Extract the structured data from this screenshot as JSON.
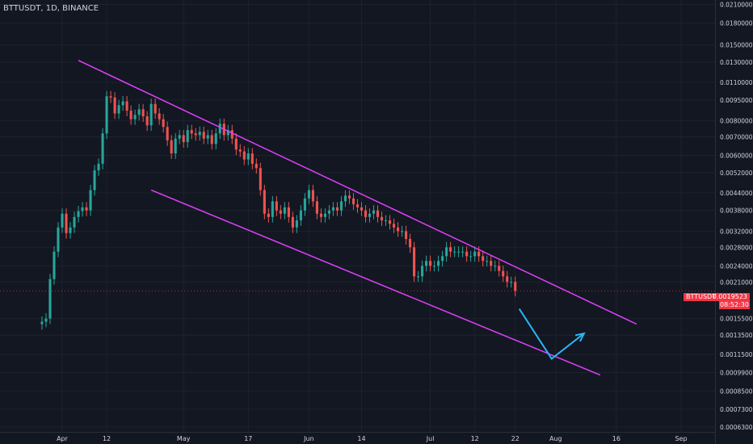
{
  "symbol_title": "BTTUSDT, 1D, BINANCE",
  "price_tag": {
    "symbol": "BTTUSDT",
    "price": "0.0019523",
    "countdown": "08:52:30"
  },
  "colors": {
    "background": "#131722",
    "up_candle": "#26a69a",
    "down_candle": "#ef5350",
    "trendline": "#e040fb",
    "projection_arrow": "#29b6f6",
    "axis_text": "#d1d4dc",
    "price_tag_bg": "#f23645"
  },
  "chart_data": {
    "type": "candlestick",
    "title": "BTTUSDT, 1D, BINANCE",
    "y_scale": "log",
    "ylim": [
      0.00063,
      0.0215
    ],
    "y_ticks": [
      "0.0210000",
      "0.0180000",
      "0.0150000",
      "0.0130000",
      "0.0110000",
      "0.0095000",
      "0.0080000",
      "0.0070000",
      "0.0060000",
      "0.0052000",
      "0.0044000",
      "0.0038000",
      "0.0032000",
      "0.0028000",
      "0.0024000",
      "0.0021000",
      "0.0015500",
      "0.0013500",
      "0.0011500",
      "0.0009900",
      "0.0008500",
      "0.0007300",
      "0.0006300"
    ],
    "x_ticks": [
      "Apr",
      "12",
      "May",
      "17",
      "Jun",
      "14",
      "Jul",
      "12",
      "22",
      "Aug",
      "16",
      "Sep"
    ],
    "close_series": [
      [
        "2021-03-27",
        0.00151
      ],
      [
        "2021-03-28",
        0.00155
      ],
      [
        "2021-03-29",
        0.00215
      ],
      [
        "2021-03-30",
        0.0027
      ],
      [
        "2021-03-31",
        0.0033
      ],
      [
        "2021-04-01",
        0.0037
      ],
      [
        "2021-04-02",
        0.00315
      ],
      [
        "2021-04-03",
        0.0033
      ],
      [
        "2021-04-04",
        0.0036
      ],
      [
        "2021-04-05",
        0.00378
      ],
      [
        "2021-04-06",
        0.0039
      ],
      [
        "2021-04-07",
        0.0038
      ],
      [
        "2021-04-08",
        0.0045
      ],
      [
        "2021-04-09",
        0.0053
      ],
      [
        "2021-04-10",
        0.0056
      ],
      [
        "2021-04-11",
        0.0072
      ],
      [
        "2021-04-12",
        0.0098
      ],
      [
        "2021-04-13",
        0.0097
      ],
      [
        "2021-04-14",
        0.0085
      ],
      [
        "2021-04-15",
        0.0091
      ],
      [
        "2021-04-16",
        0.0094
      ],
      [
        "2021-04-17",
        0.0087
      ],
      [
        "2021-04-18",
        0.0081
      ],
      [
        "2021-04-19",
        0.0084
      ],
      [
        "2021-04-20",
        0.0088
      ],
      [
        "2021-04-21",
        0.0083
      ],
      [
        "2021-04-22",
        0.0077
      ],
      [
        "2021-04-23",
        0.0092
      ],
      [
        "2021-04-24",
        0.0085
      ],
      [
        "2021-04-25",
        0.0081
      ],
      [
        "2021-04-26",
        0.0076
      ],
      [
        "2021-04-27",
        0.0068
      ],
      [
        "2021-04-28",
        0.0061
      ],
      [
        "2021-04-29",
        0.0069
      ],
      [
        "2021-04-30",
        0.0071
      ],
      [
        "2021-05-01",
        0.0067
      ],
      [
        "2021-05-02",
        0.0074
      ],
      [
        "2021-05-03",
        0.0072
      ],
      [
        "2021-05-04",
        0.0071
      ],
      [
        "2021-05-05",
        0.0073
      ],
      [
        "2021-05-06",
        0.0069
      ],
      [
        "2021-05-07",
        0.0071
      ],
      [
        "2021-05-08",
        0.0066
      ],
      [
        "2021-05-09",
        0.0072
      ],
      [
        "2021-05-10",
        0.0078
      ],
      [
        "2021-05-11",
        0.0071
      ],
      [
        "2021-05-12",
        0.0074
      ],
      [
        "2021-05-13",
        0.0069
      ],
      [
        "2021-05-14",
        0.0063
      ],
      [
        "2021-05-15",
        0.0062
      ],
      [
        "2021-05-16",
        0.0058
      ],
      [
        "2021-05-17",
        0.0061
      ],
      [
        "2021-05-18",
        0.0056
      ],
      [
        "2021-05-19",
        0.0054
      ],
      [
        "2021-05-20",
        0.0045
      ],
      [
        "2021-05-21",
        0.0037
      ],
      [
        "2021-05-22",
        0.0036
      ],
      [
        "2021-05-23",
        0.0041
      ],
      [
        "2021-05-24",
        0.0038
      ],
      [
        "2021-05-25",
        0.0037
      ],
      [
        "2021-05-26",
        0.0039
      ],
      [
        "2021-05-27",
        0.0036
      ],
      [
        "2021-05-28",
        0.0033
      ],
      [
        "2021-05-29",
        0.0035
      ],
      [
        "2021-05-30",
        0.0038
      ],
      [
        "2021-05-31",
        0.0042
      ],
      [
        "2021-06-01",
        0.0045
      ],
      [
        "2021-06-02",
        0.0041
      ],
      [
        "2021-06-03",
        0.0037
      ],
      [
        "2021-06-04",
        0.0036
      ],
      [
        "2021-06-05",
        0.0037
      ],
      [
        "2021-06-06",
        0.0038
      ],
      [
        "2021-06-07",
        0.0039
      ],
      [
        "2021-06-08",
        0.0038
      ],
      [
        "2021-06-09",
        0.0041
      ],
      [
        "2021-06-10",
        0.0043
      ],
      [
        "2021-06-11",
        0.0042
      ],
      [
        "2021-06-12",
        0.004
      ],
      [
        "2021-06-13",
        0.0039
      ],
      [
        "2021-06-14",
        0.0038
      ],
      [
        "2021-06-15",
        0.0036
      ],
      [
        "2021-06-16",
        0.0037
      ],
      [
        "2021-06-17",
        0.0038
      ],
      [
        "2021-06-18",
        0.0036
      ],
      [
        "2021-06-19",
        0.0035
      ],
      [
        "2021-06-20",
        0.0035
      ],
      [
        "2021-06-21",
        0.0034
      ],
      [
        "2021-06-22",
        0.0033
      ],
      [
        "2021-06-23",
        0.0032
      ],
      [
        "2021-06-24",
        0.0032
      ],
      [
        "2021-06-25",
        0.003
      ],
      [
        "2021-06-26",
        0.0028
      ],
      [
        "2021-06-27",
        0.0022
      ],
      [
        "2021-06-28",
        0.0022
      ],
      [
        "2021-06-29",
        0.0024
      ],
      [
        "2021-06-30",
        0.0025
      ],
      [
        "2021-07-01",
        0.0024
      ],
      [
        "2021-07-02",
        0.0024
      ],
      [
        "2021-07-03",
        0.0025
      ],
      [
        "2021-07-04",
        0.0026
      ],
      [
        "2021-07-05",
        0.0028
      ],
      [
        "2021-07-06",
        0.0027
      ],
      [
        "2021-07-07",
        0.0027
      ],
      [
        "2021-07-08",
        0.0027
      ],
      [
        "2021-07-09",
        0.0027
      ],
      [
        "2021-07-10",
        0.0026
      ],
      [
        "2021-07-11",
        0.0026
      ],
      [
        "2021-07-12",
        0.0027
      ],
      [
        "2021-07-13",
        0.0026
      ],
      [
        "2021-07-14",
        0.0025
      ],
      [
        "2021-07-15",
        0.0025
      ],
      [
        "2021-07-16",
        0.0024
      ],
      [
        "2021-07-17",
        0.0024
      ],
      [
        "2021-07-18",
        0.0023
      ],
      [
        "2021-07-19",
        0.0022
      ],
      [
        "2021-07-20",
        0.0021
      ],
      [
        "2021-07-21",
        0.0021
      ],
      [
        "2021-07-22",
        0.00195
      ]
    ],
    "annotations": [
      {
        "type": "channel_upper_line",
        "from": [
          "2021-04-05",
          0.0132
        ],
        "to": [
          "2021-08-21",
          0.00148
        ]
      },
      {
        "type": "channel_lower_line",
        "from": [
          "2021-04-23",
          0.0045
        ],
        "to": [
          "2021-08-12",
          0.00097
        ]
      },
      {
        "type": "projection_arrow",
        "points": [
          [
            "2021-07-23",
            0.00168
          ],
          [
            "2021-07-31",
            0.00111
          ],
          [
            "2021-08-08",
            0.00137
          ]
        ]
      }
    ]
  }
}
